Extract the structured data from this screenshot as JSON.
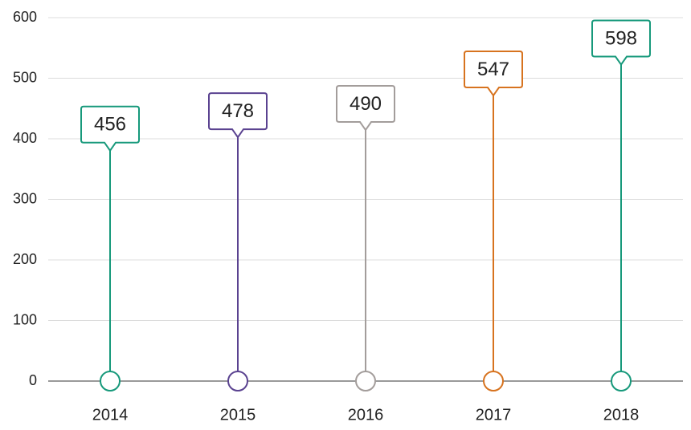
{
  "chart_data": {
    "type": "lollipop-callout",
    "categories": [
      "2014",
      "2015",
      "2016",
      "2017",
      "2018"
    ],
    "values": [
      456,
      478,
      490,
      547,
      598
    ],
    "colors": [
      "#17997b",
      "#5a4290",
      "#a39d9b",
      "#d7731f",
      "#17997b"
    ],
    "ylim": [
      0,
      600
    ],
    "yticks": [
      0,
      100,
      200,
      300,
      400,
      500,
      600
    ],
    "grid": true
  }
}
